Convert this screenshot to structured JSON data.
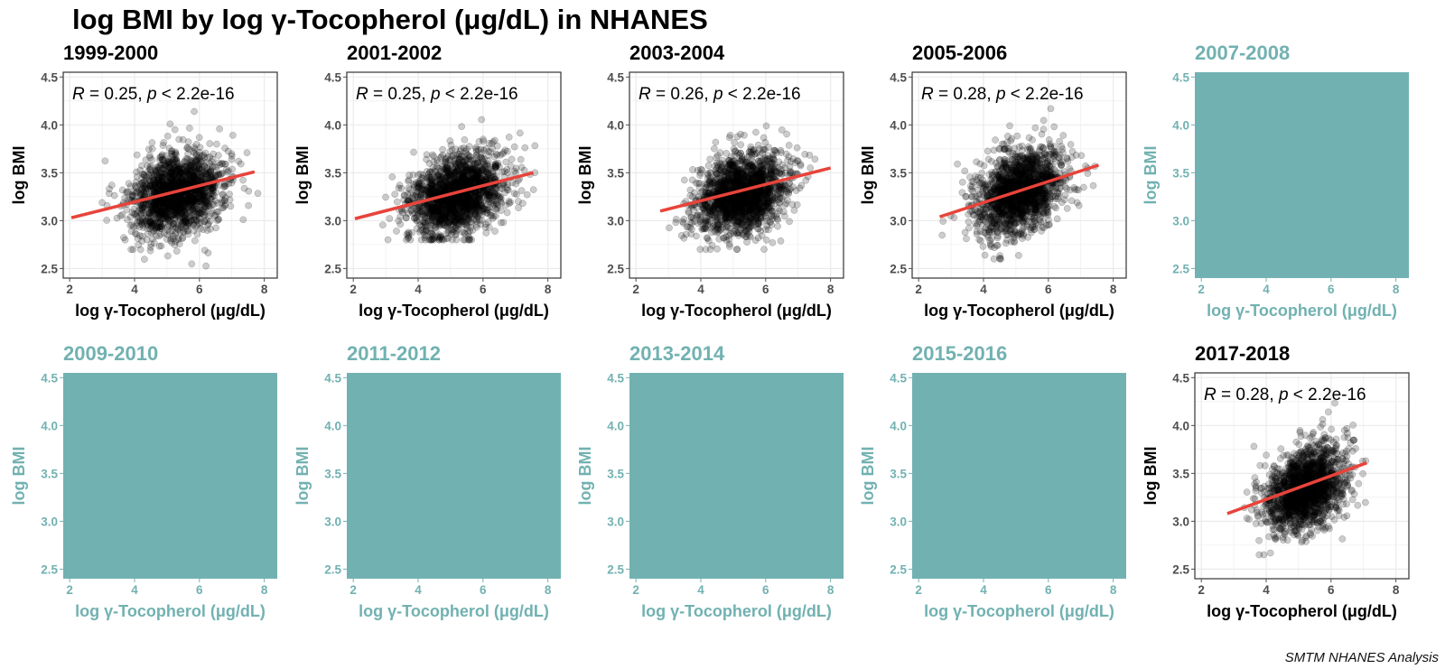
{
  "title": "log BMI by log γ-Tocopherol (μg/dL) in NHANES",
  "caption": "SMTM NHANES Analysis",
  "colors": {
    "active_text": "#000000",
    "empty_fill": "#72b1b1",
    "empty_text": "#72b1b1",
    "fit_line": "#e8433a",
    "point": "#000000",
    "grid": "#ebebeb",
    "border": "#333333"
  },
  "chart_data": [
    {
      "type": "scatter",
      "panel": "1999-2000",
      "has_data": true,
      "stat": {
        "r": "0.25",
        "p": "2.2e-16"
      },
      "fit": {
        "x": [
          2.05,
          7.7
        ],
        "y": [
          3.03,
          3.51
        ]
      },
      "cloud": {
        "cx": 5.3,
        "cy": 3.28,
        "sx": 0.7,
        "sy": 0.21,
        "n": 1700,
        "xmin": 2.0,
        "xmax": 7.8,
        "ymin": 2.5,
        "ymax": 4.2
      },
      "xlabel": "log γ-Tocopherol (μg/dL)",
      "ylabel": "log BMI",
      "xlim": [
        1.8,
        8.4
      ],
      "ylim": [
        2.4,
        4.55
      ],
      "xticks": [
        2,
        4,
        6,
        8
      ],
      "yticks": [
        2.5,
        3.0,
        3.5,
        4.0,
        4.5
      ],
      "ytick_labels": [
        "2.5",
        "3.0",
        "3.5",
        "4.0",
        "4.5"
      ]
    },
    {
      "type": "scatter",
      "panel": "2001-2002",
      "has_data": true,
      "stat": {
        "r": "0.25",
        "p": "2.2e-16"
      },
      "fit": {
        "x": [
          2.05,
          7.55
        ],
        "y": [
          3.02,
          3.5
        ]
      },
      "cloud": {
        "cx": 5.2,
        "cy": 3.27,
        "sx": 0.72,
        "sy": 0.2,
        "n": 1800,
        "xmin": 2.0,
        "xmax": 7.6,
        "ymin": 2.8,
        "ymax": 4.2
      },
      "xlabel": "log γ-Tocopherol (μg/dL)",
      "ylabel": "log BMI",
      "xlim": [
        1.8,
        8.4
      ],
      "ylim": [
        2.4,
        4.55
      ],
      "xticks": [
        2,
        4,
        6,
        8
      ],
      "yticks": [
        2.5,
        3.0,
        3.5,
        4.0,
        4.5
      ],
      "ytick_labels": [
        "2.5",
        "3.0",
        "3.5",
        "4.0",
        "4.5"
      ]
    },
    {
      "type": "scatter",
      "panel": "2003-2004",
      "has_data": true,
      "stat": {
        "r": "0.26",
        "p": "2.2e-16"
      },
      "fit": {
        "x": [
          2.75,
          8.0
        ],
        "y": [
          3.1,
          3.55
        ]
      },
      "cloud": {
        "cx": 5.25,
        "cy": 3.28,
        "sx": 0.7,
        "sy": 0.2,
        "n": 1800,
        "xmin": 2.7,
        "xmax": 8.0,
        "ymin": 2.7,
        "ymax": 4.2
      },
      "xlabel": "log γ-Tocopherol (μg/dL)",
      "ylabel": "log BMI",
      "xlim": [
        1.8,
        8.4
      ],
      "ylim": [
        2.4,
        4.55
      ],
      "xticks": [
        2,
        4,
        6,
        8
      ],
      "yticks": [
        2.5,
        3.0,
        3.5,
        4.0,
        4.5
      ],
      "ytick_labels": [
        "2.5",
        "3.0",
        "3.5",
        "4.0",
        "4.5"
      ]
    },
    {
      "type": "scatter",
      "panel": "2005-2006",
      "has_data": true,
      "stat": {
        "r": "0.28",
        "p": "2.2e-16"
      },
      "fit": {
        "x": [
          2.65,
          7.55
        ],
        "y": [
          3.04,
          3.58
        ]
      },
      "cloud": {
        "cx": 5.1,
        "cy": 3.3,
        "sx": 0.68,
        "sy": 0.21,
        "n": 1700,
        "xmin": 2.6,
        "xmax": 7.6,
        "ymin": 2.6,
        "ymax": 4.2
      },
      "xlabel": "log γ-Tocopherol (μg/dL)",
      "ylabel": "log BMI",
      "xlim": [
        1.8,
        8.4
      ],
      "ylim": [
        2.4,
        4.55
      ],
      "xticks": [
        2,
        4,
        6,
        8
      ],
      "yticks": [
        2.5,
        3.0,
        3.5,
        4.0,
        4.5
      ],
      "ytick_labels": [
        "2.5",
        "3.0",
        "3.5",
        "4.0",
        "4.5"
      ]
    },
    {
      "type": "scatter",
      "panel": "2007-2008",
      "has_data": false,
      "xlabel": "log γ-Tocopherol (μg/dL)",
      "ylabel": "log BMI",
      "xlim": [
        1.8,
        8.4
      ],
      "ylim": [
        2.4,
        4.55
      ],
      "xticks": [
        2,
        4,
        6,
        8
      ],
      "yticks": [
        2.5,
        3.0,
        3.5,
        4.0,
        4.5
      ],
      "ytick_labels": [
        "2.5",
        "3.0",
        "3.5",
        "4.0",
        "4.5"
      ]
    },
    {
      "type": "scatter",
      "panel": "2009-2010",
      "has_data": false,
      "xlabel": "log γ-Tocopherol (μg/dL)",
      "ylabel": "log BMI",
      "xlim": [
        1.8,
        8.4
      ],
      "ylim": [
        2.4,
        4.55
      ],
      "xticks": [
        2,
        4,
        6,
        8
      ],
      "yticks": [
        2.5,
        3.0,
        3.5,
        4.0,
        4.5
      ],
      "ytick_labels": [
        "2.5",
        "3.0",
        "3.5",
        "4.0",
        "4.5"
      ]
    },
    {
      "type": "scatter",
      "panel": "2011-2012",
      "has_data": false,
      "xlabel": "log γ-Tocopherol (μg/dL)",
      "ylabel": "log BMI",
      "xlim": [
        1.8,
        8.4
      ],
      "ylim": [
        2.4,
        4.55
      ],
      "xticks": [
        2,
        4,
        6,
        8
      ],
      "yticks": [
        2.5,
        3.0,
        3.5,
        4.0,
        4.5
      ],
      "ytick_labels": [
        "2.5",
        "3.0",
        "3.5",
        "4.0",
        "4.5"
      ]
    },
    {
      "type": "scatter",
      "panel": "2013-2014",
      "has_data": false,
      "xlabel": "log γ-Tocopherol (μg/dL)",
      "ylabel": "log BMI",
      "xlim": [
        1.8,
        8.4
      ],
      "ylim": [
        2.4,
        4.55
      ],
      "xticks": [
        2,
        4,
        6,
        8
      ],
      "yticks": [
        2.5,
        3.0,
        3.5,
        4.0,
        4.5
      ],
      "ytick_labels": [
        "2.5",
        "3.0",
        "3.5",
        "4.0",
        "4.5"
      ]
    },
    {
      "type": "scatter",
      "panel": "2015-2016",
      "has_data": false,
      "xlabel": "log γ-Tocopherol (μg/dL)",
      "ylabel": "log BMI",
      "xlim": [
        1.8,
        8.4
      ],
      "ylim": [
        2.4,
        4.55
      ],
      "xticks": [
        2,
        4,
        6,
        8
      ],
      "yticks": [
        2.5,
        3.0,
        3.5,
        4.0,
        4.5
      ],
      "ytick_labels": [
        "2.5",
        "3.0",
        "3.5",
        "4.0",
        "4.5"
      ]
    },
    {
      "type": "scatter",
      "panel": "2017-2018",
      "has_data": true,
      "stat": {
        "r": "0.28",
        "p": "2.2e-16"
      },
      "fit": {
        "x": [
          2.8,
          7.1
        ],
        "y": [
          3.08,
          3.61
        ]
      },
      "cloud": {
        "cx": 5.2,
        "cy": 3.33,
        "sx": 0.6,
        "sy": 0.21,
        "n": 1700,
        "xmin": 2.7,
        "xmax": 7.2,
        "ymin": 2.65,
        "ymax": 4.45
      },
      "xlabel": "log γ-Tocopherol (μg/dL)",
      "ylabel": "log BMI",
      "xlim": [
        1.8,
        8.4
      ],
      "ylim": [
        2.4,
        4.55
      ],
      "xticks": [
        2,
        4,
        6,
        8
      ],
      "yticks": [
        2.5,
        3.0,
        3.5,
        4.0,
        4.5
      ],
      "ytick_labels": [
        "2.5",
        "3.0",
        "3.5",
        "4.0",
        "4.5"
      ]
    }
  ]
}
